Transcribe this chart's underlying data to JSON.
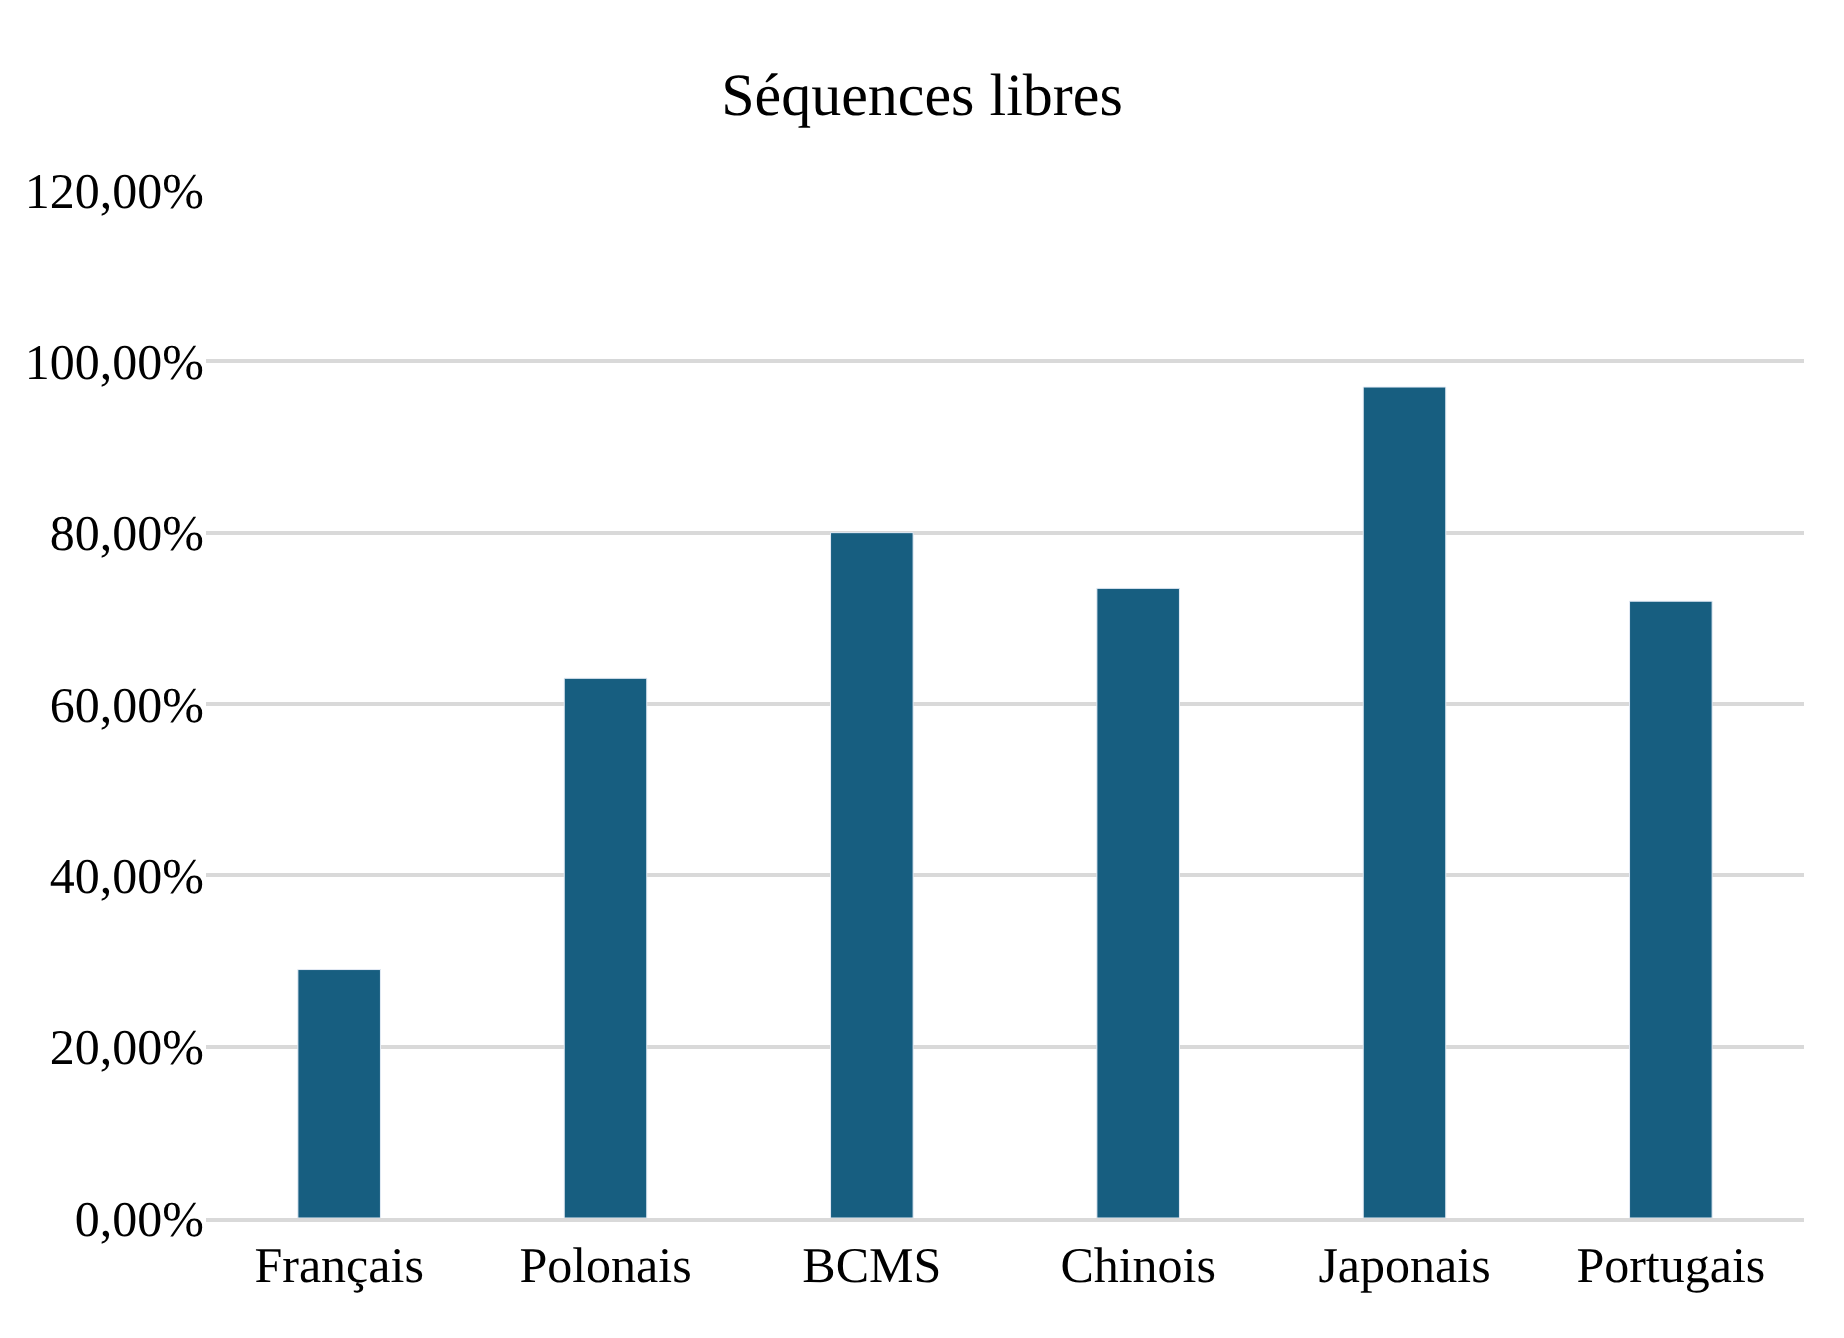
{
  "chart_data": {
    "type": "bar",
    "title": "Séquences libres",
    "categories": [
      "Français",
      "Polonais",
      "BCMS",
      "Chinois",
      "Japonais",
      "Portugais"
    ],
    "values": [
      29,
      63,
      80,
      73.5,
      97,
      72
    ],
    "color": "#175e80",
    "ylim": [
      0,
      120
    ],
    "yticks": [
      {
        "value": 0,
        "label": "0,00%"
      },
      {
        "value": 20,
        "label": "20,00%"
      },
      {
        "value": 40,
        "label": "40,00%"
      },
      {
        "value": 60,
        "label": "60,00%"
      },
      {
        "value": 80,
        "label": "80,00%"
      },
      {
        "value": 100,
        "label": "100,00%"
      },
      {
        "value": 120,
        "label": "120,00%"
      }
    ],
    "grid": "y",
    "legend": false
  }
}
